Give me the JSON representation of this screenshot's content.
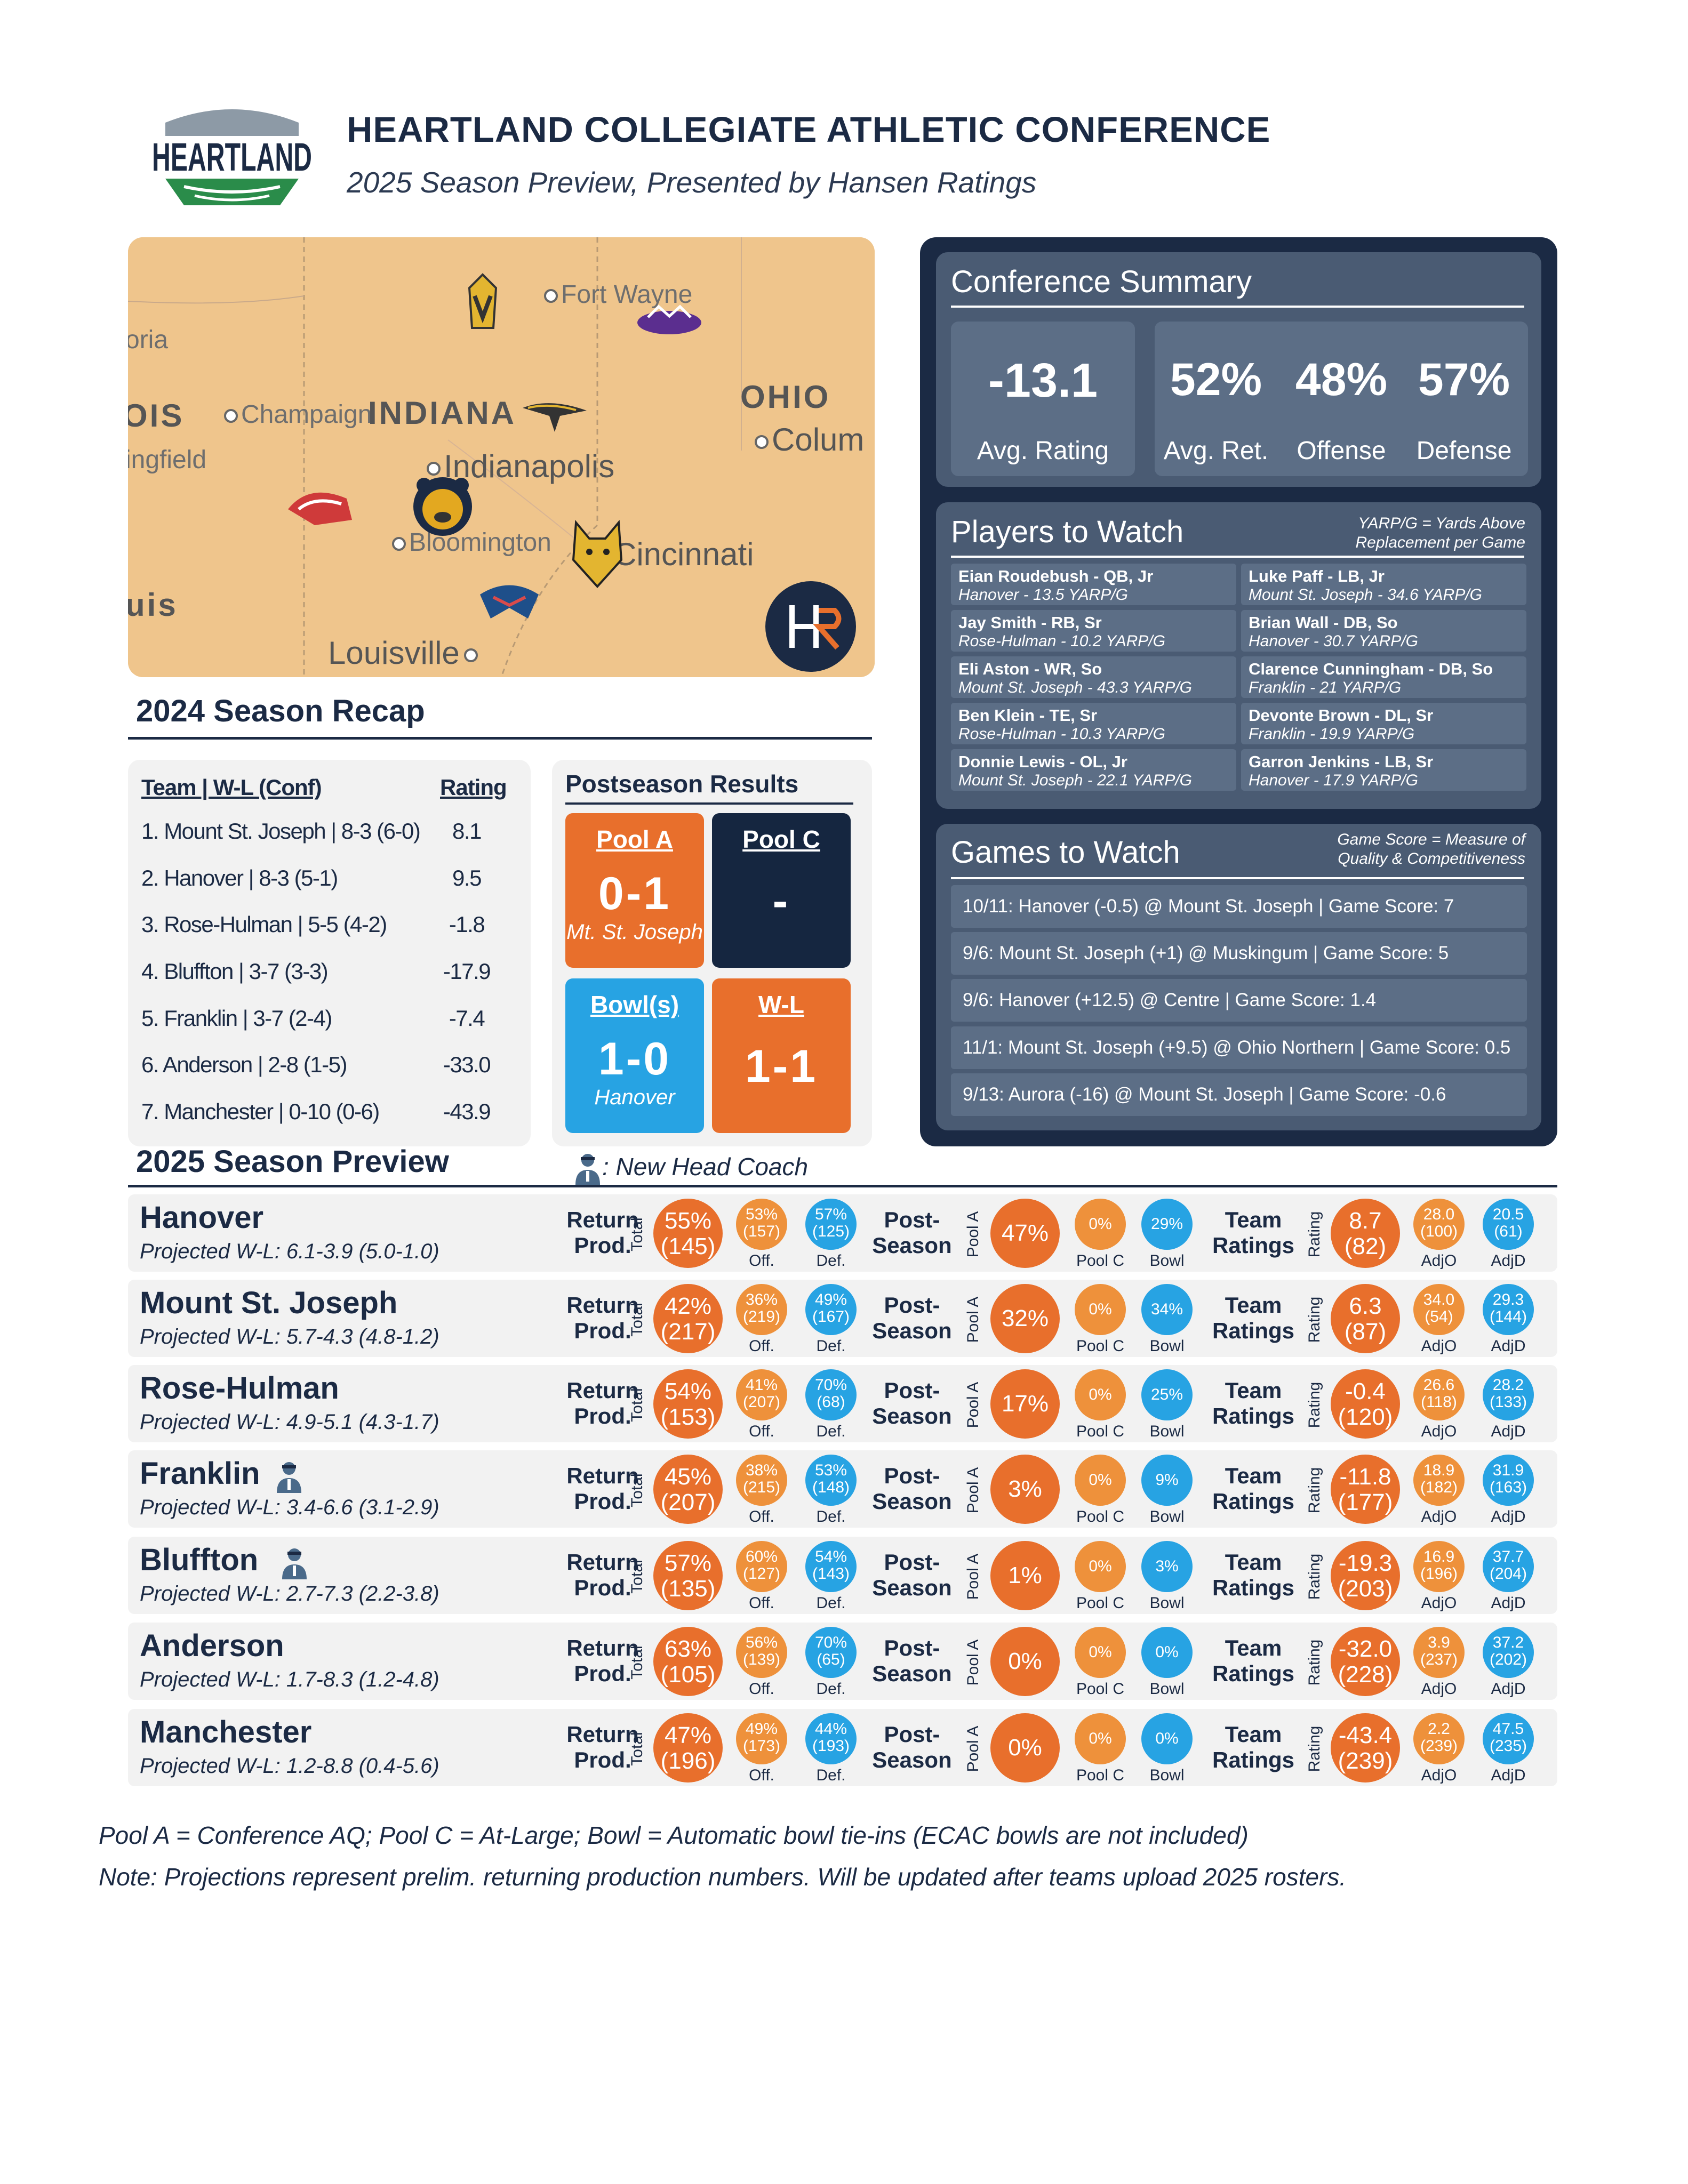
{
  "header": {
    "logo_text": "HEARTLAND",
    "title": "HEARTLAND COLLEGIATE ATHLETIC CONFERENCE",
    "subtitle": "2025 Season Preview, Presented by Hansen Ratings"
  },
  "map": {
    "labels": [
      "Fort Wayne",
      "oria",
      "OIS",
      "Champaign",
      "INDIANA",
      "OHIO",
      "Colum",
      "ingfield",
      "Indianapolis",
      "Bloomington",
      "Cincinnati",
      "uis",
      "Louisville"
    ],
    "badge_text": "HR"
  },
  "recap": {
    "title": "2024 Season Recap",
    "col_team": "Team | W-L (Conf)",
    "col_rating": "Rating",
    "rows": [
      {
        "team": "1. Mount St. Joseph | 8-3 (6-0)",
        "rating": "8.1"
      },
      {
        "team": "2. Hanover | 8-3 (5-1)",
        "rating": "9.5"
      },
      {
        "team": "3. Rose-Hulman | 5-5 (4-2)",
        "rating": "-1.8"
      },
      {
        "team": "4. Bluffton | 3-7 (3-3)",
        "rating": "-17.9"
      },
      {
        "team": "5. Franklin | 3-7 (2-4)",
        "rating": "-7.4"
      },
      {
        "team": "6. Anderson | 2-8 (1-5)",
        "rating": "-33.0"
      },
      {
        "team": "7. Manchester | 0-10 (0-6)",
        "rating": "-43.9"
      }
    ]
  },
  "postseason": {
    "title": "Postseason Results",
    "boxes": [
      {
        "label": "Pool A",
        "value": "0-1",
        "sub": "Mt. St. Joseph"
      },
      {
        "label": "Pool C",
        "value": "-",
        "sub": ""
      },
      {
        "label": "Bowl(s)",
        "value": "1-0",
        "sub": "Hanover"
      },
      {
        "label": "W-L",
        "value": "1-1",
        "sub": ""
      }
    ]
  },
  "summary": {
    "title": "Conference Summary",
    "avg_rating": "-13.1",
    "avg_rating_label": "Avg. Rating",
    "avg_ret": "52%",
    "avg_ret_label": "Avg. Ret.",
    "offense": "48%",
    "offense_label": "Offense",
    "defense": "57%",
    "defense_label": "Defense"
  },
  "players": {
    "title": "Players to Watch",
    "note": "YARP/G = Yards Above Replacement per Game",
    "list": [
      {
        "name": "Eian Roudebush - QB, Jr",
        "detail": "Hanover - 13.5 YARP/G"
      },
      {
        "name": "Luke Paff - LB, Jr",
        "detail": "Mount St. Joseph - 34.6 YARP/G"
      },
      {
        "name": "Jay Smith - RB, Sr",
        "detail": "Rose-Hulman - 10.2 YARP/G"
      },
      {
        "name": "Brian Wall - DB, So",
        "detail": "Hanover - 30.7 YARP/G"
      },
      {
        "name": "Eli Aston - WR, So",
        "detail": "Mount St. Joseph - 43.3 YARP/G"
      },
      {
        "name": "Clarence Cunningham - DB, So",
        "detail": "Franklin - 21 YARP/G"
      },
      {
        "name": "Ben Klein - TE, Sr",
        "detail": "Rose-Hulman - 10.3 YARP/G"
      },
      {
        "name": "Devonte Brown - DL, Sr",
        "detail": "Franklin - 19.9 YARP/G"
      },
      {
        "name": "Donnie Lewis - OL, Jr",
        "detail": "Mount St. Joseph - 22.1 YARP/G"
      },
      {
        "name": "Garron Jenkins - LB, Sr",
        "detail": "Hanover - 17.9 YARP/G"
      }
    ]
  },
  "games": {
    "title": "Games to Watch",
    "note": "Game Score = Measure of Quality & Competitiveness",
    "list": [
      "10/11: Hanover (-0.5) @ Mount St. Joseph | Game Score: 7",
      "9/6: Mount St. Joseph (+1) @ Muskingum | Game Score: 5",
      "9/6: Hanover (+12.5) @ Centre | Game Score: 1.4",
      "11/1: Mount St. Joseph (+9.5) @ Ohio Northern | Game Score: 0.5",
      "9/13: Aurora (-16) @ Mount St. Joseph | Game Score: -0.6"
    ]
  },
  "preview": {
    "title": "2025 Season Preview",
    "coach_legend": ": New Head Coach",
    "labels": {
      "ret": "Return Prod.",
      "post": "Post-Season",
      "ratings": "Team Ratings",
      "total": "Total",
      "off": "Off.",
      "def": "Def.",
      "poola": "Pool A",
      "poolc": "Pool C",
      "bowl": "Bowl",
      "rating": "Rating",
      "adjo": "AdjO",
      "adjd": "AdjD"
    },
    "teams": [
      {
        "name": "Hanover",
        "proj": "Projected W-L: 6.1-3.9 (5.0-1.0)",
        "coach": false,
        "total": "55%",
        "total_rank": "(145)",
        "off": "53%",
        "off_rank": "(157)",
        "def": "57%",
        "def_rank": "(125)",
        "poola": "47%",
        "poolc": "0%",
        "bowl": "29%",
        "rating": "8.7",
        "rating_rank": "(82)",
        "adjo": "28.0",
        "adjo_rank": "(100)",
        "adjd": "20.5",
        "adjd_rank": "(61)"
      },
      {
        "name": "Mount St. Joseph",
        "proj": "Projected W-L: 5.7-4.3 (4.8-1.2)",
        "coach": false,
        "total": "42%",
        "total_rank": "(217)",
        "off": "36%",
        "off_rank": "(219)",
        "def": "49%",
        "def_rank": "(167)",
        "poola": "32%",
        "poolc": "0%",
        "bowl": "34%",
        "rating": "6.3",
        "rating_rank": "(87)",
        "adjo": "34.0",
        "adjo_rank": "(54)",
        "adjd": "29.3",
        "adjd_rank": "(144)"
      },
      {
        "name": "Rose-Hulman",
        "proj": "Projected W-L: 4.9-5.1 (4.3-1.7)",
        "coach": false,
        "total": "54%",
        "total_rank": "(153)",
        "off": "41%",
        "off_rank": "(207)",
        "def": "70%",
        "def_rank": "(68)",
        "poola": "17%",
        "poolc": "0%",
        "bowl": "25%",
        "rating": "-0.4",
        "rating_rank": "(120)",
        "adjo": "26.6",
        "adjo_rank": "(118)",
        "adjd": "28.2",
        "adjd_rank": "(133)"
      },
      {
        "name": "Franklin",
        "proj": "Projected W-L: 3.4-6.6 (3.1-2.9)",
        "coach": true,
        "total": "45%",
        "total_rank": "(207)",
        "off": "38%",
        "off_rank": "(215)",
        "def": "53%",
        "def_rank": "(148)",
        "poola": "3%",
        "poolc": "0%",
        "bowl": "9%",
        "rating": "-11.8",
        "rating_rank": "(177)",
        "adjo": "18.9",
        "adjo_rank": "(182)",
        "adjd": "31.9",
        "adjd_rank": "(163)"
      },
      {
        "name": "Bluffton",
        "proj": "Projected W-L: 2.7-7.3 (2.2-3.8)",
        "coach": true,
        "total": "57%",
        "total_rank": "(135)",
        "off": "60%",
        "off_rank": "(127)",
        "def": "54%",
        "def_rank": "(143)",
        "poola": "1%",
        "poolc": "0%",
        "bowl": "3%",
        "rating": "-19.3",
        "rating_rank": "(203)",
        "adjo": "16.9",
        "adjo_rank": "(196)",
        "adjd": "37.7",
        "adjd_rank": "(204)"
      },
      {
        "name": "Anderson",
        "proj": "Projected W-L: 1.7-8.3 (1.2-4.8)",
        "coach": false,
        "total": "63%",
        "total_rank": "(105)",
        "off": "56%",
        "off_rank": "(139)",
        "def": "70%",
        "def_rank": "(65)",
        "poola": "0%",
        "poolc": "0%",
        "bowl": "0%",
        "rating": "-32.0",
        "rating_rank": "(228)",
        "adjo": "3.9",
        "adjo_rank": "(237)",
        "adjd": "37.2",
        "adjd_rank": "(202)"
      },
      {
        "name": "Manchester",
        "proj": "Projected W-L: 1.2-8.8 (0.4-5.6)",
        "coach": false,
        "total": "47%",
        "total_rank": "(196)",
        "off": "49%",
        "off_rank": "(173)",
        "def": "44%",
        "def_rank": "(193)",
        "poola": "0%",
        "poolc": "0%",
        "bowl": "0%",
        "rating": "-43.4",
        "rating_rank": "(239)",
        "adjo": "2.2",
        "adjo_rank": "(239)",
        "adjd": "47.5",
        "adjd_rank": "(235)"
      }
    ]
  },
  "footer": {
    "line1": "Pool A = Conference AQ; Pool C = At-Large; Bowl = Automatic bowl tie-ins (ECAC bowls are not included)",
    "line2": "Note: Projections represent prelim. returning production numbers. Will be updated after teams upload 2025 rosters."
  },
  "colors": {
    "navy": "#1b2a44",
    "orange": "#e86f2c",
    "light_orange": "#ee913b",
    "blue": "#27a3e3",
    "slate": "#4a5b73"
  }
}
